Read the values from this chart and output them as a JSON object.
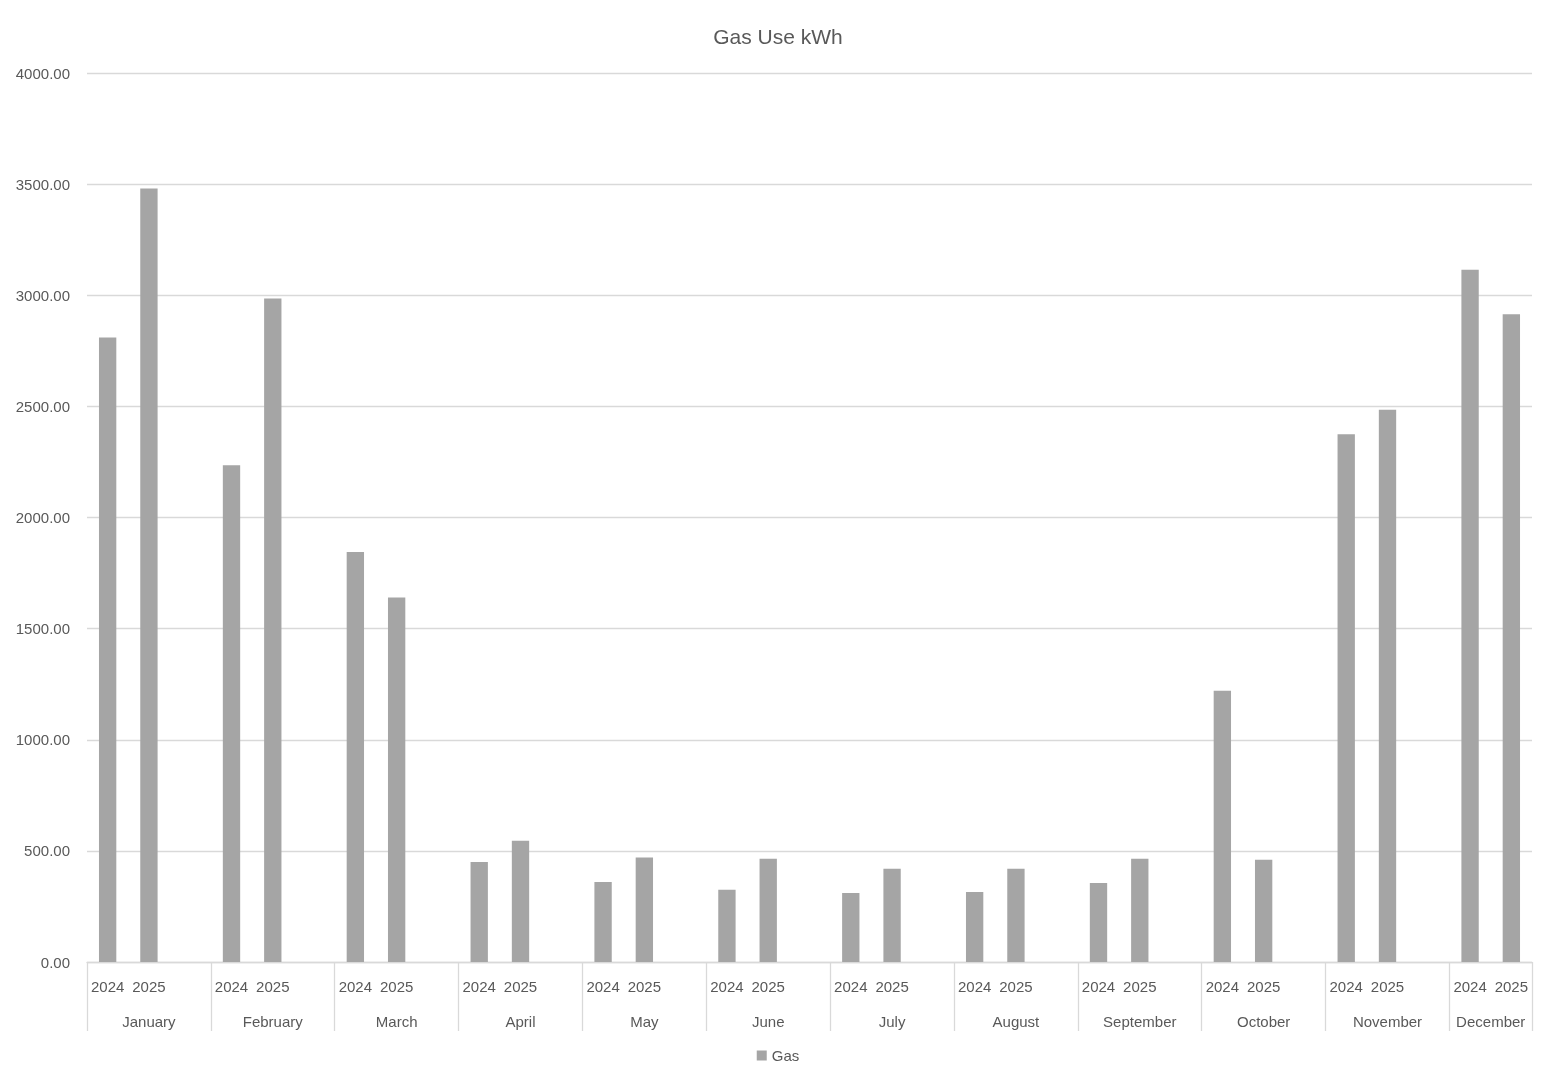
{
  "chart_data": {
    "type": "bar",
    "title": "Gas Use kWh",
    "categories": [
      "2024",
      "2025",
      null,
      "2024",
      "2025",
      null,
      "2024",
      "2025",
      null,
      "2024",
      "2025",
      null,
      "2024",
      "2025",
      null,
      "2024",
      "2025",
      null,
      "2024",
      "2025",
      null,
      "2024",
      "2025",
      null,
      "2024",
      "2025",
      null,
      "2024",
      "2025",
      null,
      "2024",
      "2025",
      null,
      "2024",
      "2025"
    ],
    "series": [
      {
        "name": "Gas",
        "color": "#a5a5a5",
        "values": [
          2810,
          3480,
          null,
          2235,
          2985,
          null,
          1845,
          1640,
          null,
          450,
          545,
          null,
          360,
          470,
          null,
          325,
          465,
          null,
          310,
          420,
          null,
          315,
          420,
          null,
          355,
          465,
          null,
          1220,
          460,
          null,
          2375,
          2485,
          null,
          3115,
          2915
        ]
      }
    ],
    "annotations": [
      "January",
      "February",
      "March",
      "April",
      "May",
      "June",
      "July",
      "August",
      "September",
      "October",
      "November",
      "December"
    ],
    "ylim": [
      0,
      4000
    ],
    "yticks": [
      {
        "value": 0,
        "label": "0.00"
      },
      {
        "value": 500,
        "label": "500.00"
      },
      {
        "value": 1000,
        "label": "1000.00"
      },
      {
        "value": 1500,
        "label": "1500.00"
      },
      {
        "value": 2000,
        "label": "2000.00"
      },
      {
        "value": 2500,
        "label": "2500.00"
      },
      {
        "value": 3000,
        "label": "3000.00"
      },
      {
        "value": 3500,
        "label": "3500.00"
      },
      {
        "value": 4000,
        "label": "4000.00"
      }
    ],
    "grid": "y",
    "legend": "bottom"
  }
}
